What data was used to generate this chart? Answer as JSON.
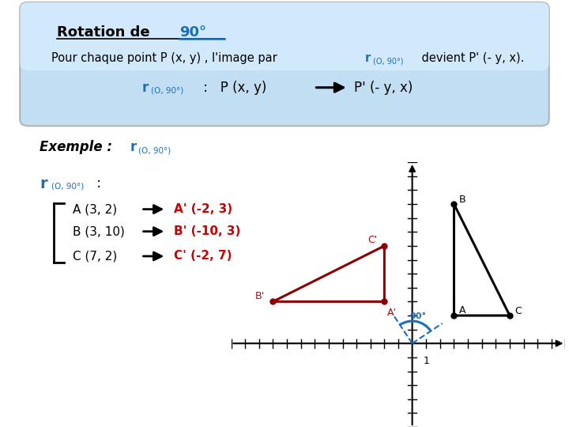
{
  "bg_color": "#ffffff",
  "box_bg_top": "#cce4f7",
  "box_bg_bottom": "#5599cc",
  "box_border": "#999999",
  "blue_color": "#1a6fbd",
  "dark_red": "#8b0000",
  "red_label": "#cc0000",
  "axis_xlim": [
    -13,
    11
  ],
  "axis_ylim": [
    -6,
    13
  ],
  "tick_size": 0.3,
  "A": [
    3,
    2
  ],
  "B": [
    3,
    10
  ],
  "C": [
    7,
    2
  ],
  "Ap": [
    -2,
    3
  ],
  "Bp": [
    -10,
    3
  ],
  "Cp": [
    -2,
    7
  ]
}
